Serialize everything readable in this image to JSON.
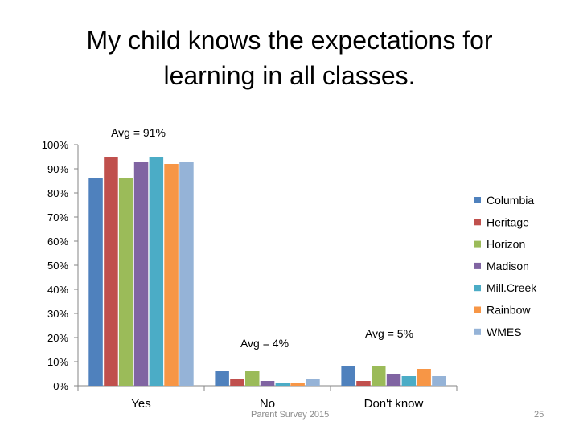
{
  "slide": {
    "title": "My child knows the expectations for\nlearning in all classes.",
    "footer": "Parent Survey 2015",
    "number": "25"
  },
  "chart_data": {
    "type": "bar",
    "title": "My child knows the expectations for learning in all classes.",
    "categories": [
      "Yes",
      "No",
      "Don't know"
    ],
    "series": [
      {
        "name": "Columbia",
        "color": "#4F81BD",
        "values": [
          86,
          6,
          8
        ]
      },
      {
        "name": "Heritage",
        "color": "#C0504D",
        "values": [
          95,
          3,
          2
        ]
      },
      {
        "name": "Horizon",
        "color": "#9BBB59",
        "values": [
          86,
          6,
          8
        ]
      },
      {
        "name": "Madison",
        "color": "#8064A2",
        "values": [
          93,
          2,
          5
        ]
      },
      {
        "name": "Mill.Creek",
        "color": "#4BACC6",
        "values": [
          95,
          1,
          4
        ]
      },
      {
        "name": "Rainbow",
        "color": "#F79646",
        "values": [
          92,
          1,
          7
        ]
      },
      {
        "name": "WMES",
        "color": "#95B3D7",
        "values": [
          93,
          3,
          4
        ]
      }
    ],
    "ylim": [
      0,
      100
    ],
    "y_ticks": [
      "0%",
      "10%",
      "20%",
      "30%",
      "40%",
      "50%",
      "60%",
      "70%",
      "80%",
      "90%",
      "100%"
    ],
    "annotations": [
      "Avg = 91%",
      "Avg = 4%",
      "Avg = 5%"
    ],
    "legend_position": "right",
    "grid": false
  }
}
